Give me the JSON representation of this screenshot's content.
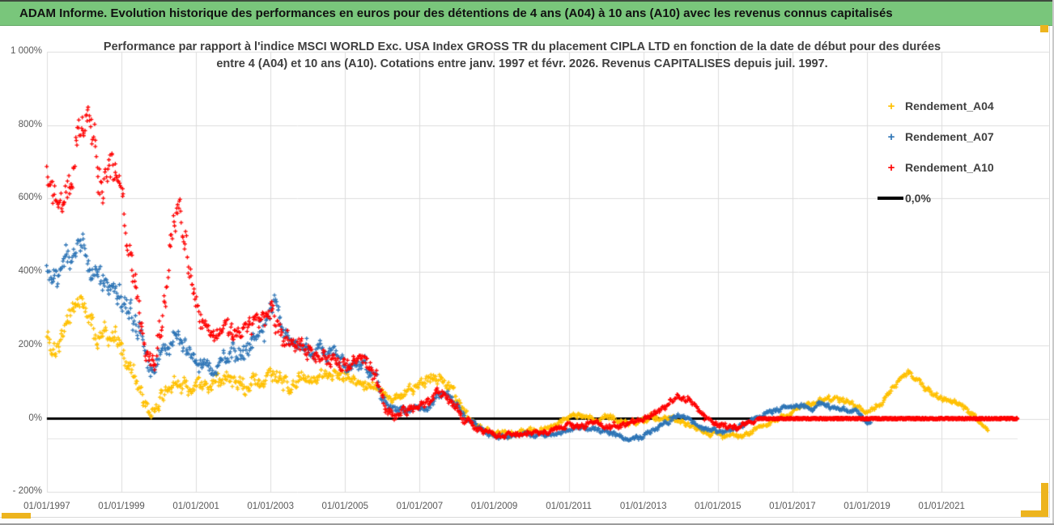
{
  "header": {
    "title": "ADAM Informe. Evolution historique des performances en euros pour des détentions de 4 ans (A04) à 10 ans (A10) avec les revenus connus capitalisés",
    "background_color": "#79C67B"
  },
  "accent_gold_color": "#EDB41E",
  "chart_data": {
    "type": "scatter",
    "title_line1": "Performance par rapport à l'indice MSCI WORLD Exc. USA Index GROSS TR  du placement CIPLA LTD en fonction de la date de début pour des durées",
    "title_line2": "entre 4 (A04) et 10 ans (A10). Cotations entre janv. 1997 et févr. 2026. Revenus CAPITALISES depuis juil. 1997.",
    "grid": true,
    "colors": {
      "grid": "#dcdcdc",
      "axis_text": "#595959",
      "zero_line": "#000000"
    },
    "y_axis": {
      "range": [
        -200,
        1000
      ],
      "ticks": [
        {
          "label": "1 000%",
          "value": 1000
        },
        {
          "label": "800%",
          "value": 800
        },
        {
          "label": "600%",
          "value": 600
        },
        {
          "label": "400%",
          "value": 400
        },
        {
          "label": "200%",
          "value": 200
        },
        {
          "label": "0%",
          "value": 0
        },
        {
          "label": "- 200%",
          "value": -200
        }
      ]
    },
    "x_axis": {
      "range_years": [
        1997.0,
        2023.9
      ],
      "ticks": [
        {
          "label": "01/01/1997",
          "year": 1997
        },
        {
          "label": "01/01/1999",
          "year": 1999
        },
        {
          "label": "01/01/2001",
          "year": 2001
        },
        {
          "label": "01/01/2003",
          "year": 2003
        },
        {
          "label": "01/01/2005",
          "year": 2005
        },
        {
          "label": "01/01/2007",
          "year": 2007
        },
        {
          "label": "01/01/2009",
          "year": 2009
        },
        {
          "label": "01/01/2011",
          "year": 2011
        },
        {
          "label": "01/01/2013",
          "year": 2013
        },
        {
          "label": "01/01/2015",
          "year": 2015
        },
        {
          "label": "01/01/2017",
          "year": 2017
        },
        {
          "label": "01/01/2019",
          "year": 2019
        },
        {
          "label": "01/01/2021",
          "year": 2021
        }
      ]
    },
    "legend": {
      "position": "right-top",
      "items": [
        {
          "label": "Rendement_A04",
          "marker": "+",
          "color": "#FFC000"
        },
        {
          "label": "Rendement_A07",
          "marker": "+",
          "color": "#2E75B6"
        },
        {
          "label": "Rendement_A10",
          "marker": "+",
          "color": "#FF0000"
        },
        {
          "label": "0,0%",
          "marker": "line",
          "color": "#000000"
        }
      ]
    },
    "zero_line": {
      "value": 0,
      "from_year": 1997.0,
      "to_year": 2023.04
    },
    "extra_faint_line": {
      "value": -55,
      "from_year": 1997.0,
      "to_year": 2023.04
    },
    "series": [
      {
        "name": "Rendement_A04",
        "color": "#FFC000",
        "marker": "+",
        "points_year_pct_band": [
          [
            1997.0,
            230,
            40
          ],
          [
            1997.3,
            200,
            42
          ],
          [
            1997.6,
            255,
            48
          ],
          [
            1997.85,
            320,
            40
          ],
          [
            1998.05,
            285,
            48
          ],
          [
            1998.35,
            225,
            50
          ],
          [
            1998.65,
            250,
            55
          ],
          [
            1998.95,
            205,
            50
          ],
          [
            1999.25,
            150,
            42
          ],
          [
            1999.55,
            60,
            35
          ],
          [
            1999.8,
            8,
            25
          ],
          [
            2000.05,
            55,
            30
          ],
          [
            2000.35,
            105,
            35
          ],
          [
            2000.65,
            90,
            32
          ],
          [
            2001.0,
            80,
            30
          ],
          [
            2001.35,
            92,
            35
          ],
          [
            2001.7,
            108,
            38
          ],
          [
            2002.05,
            98,
            35
          ],
          [
            2002.4,
            88,
            35
          ],
          [
            2002.75,
            100,
            38
          ],
          [
            2003.1,
            108,
            38
          ],
          [
            2003.45,
            88,
            30
          ],
          [
            2003.8,
            108,
            30
          ],
          [
            2004.15,
            118,
            28
          ],
          [
            2004.5,
            110,
            26
          ],
          [
            2004.85,
            122,
            28
          ],
          [
            2005.2,
            108,
            28
          ],
          [
            2005.55,
            98,
            28
          ],
          [
            2005.9,
            78,
            24
          ],
          [
            2006.2,
            58,
            20
          ],
          [
            2006.55,
            68,
            20
          ],
          [
            2006.9,
            78,
            22
          ],
          [
            2007.25,
            105,
            24
          ],
          [
            2007.55,
            115,
            24
          ],
          [
            2007.9,
            70,
            25
          ],
          [
            2008.2,
            15,
            20
          ],
          [
            2008.55,
            -18,
            15
          ],
          [
            2008.95,
            -38,
            12
          ],
          [
            2009.35,
            -44,
            12
          ],
          [
            2009.75,
            -35,
            12
          ],
          [
            2010.15,
            -34,
            10
          ],
          [
            2010.55,
            -24,
            10
          ],
          [
            2010.95,
            2,
            10
          ],
          [
            2011.3,
            10,
            10
          ],
          [
            2011.65,
            -4,
            10
          ],
          [
            2012.0,
            0,
            11
          ],
          [
            2012.4,
            -6,
            11
          ],
          [
            2012.8,
            -10,
            11
          ],
          [
            2013.2,
            4,
            11
          ],
          [
            2013.55,
            10,
            11
          ],
          [
            2013.95,
            -6,
            11
          ],
          [
            2014.3,
            -20,
            11
          ],
          [
            2014.65,
            -40,
            10
          ],
          [
            2015.05,
            -45,
            10
          ],
          [
            2015.45,
            -50,
            9
          ],
          [
            2015.85,
            -40,
            9
          ],
          [
            2016.2,
            -22,
            9
          ],
          [
            2016.55,
            -2,
            9
          ],
          [
            2016.9,
            12,
            9
          ],
          [
            2017.25,
            28,
            10
          ],
          [
            2017.65,
            45,
            11
          ],
          [
            2017.95,
            55,
            11
          ],
          [
            2018.3,
            55,
            11
          ],
          [
            2018.65,
            35,
            10
          ],
          [
            2019.0,
            20,
            10
          ],
          [
            2019.3,
            35,
            10
          ],
          [
            2019.6,
            70,
            13
          ],
          [
            2019.9,
            110,
            13
          ],
          [
            2020.1,
            125,
            10
          ],
          [
            2020.4,
            103,
            12
          ],
          [
            2020.7,
            75,
            12
          ],
          [
            2021.0,
            55,
            12
          ],
          [
            2021.3,
            45,
            10
          ],
          [
            2021.6,
            30,
            10
          ],
          [
            2021.9,
            6,
            9
          ],
          [
            2022.1,
            -24,
            7
          ],
          [
            2022.25,
            -30,
            5
          ]
        ]
      },
      {
        "name": "Rendement_A07",
        "color": "#2E75B6",
        "marker": "+",
        "points_year_pct_band": [
          [
            1997.0,
            420,
            50
          ],
          [
            1997.3,
            375,
            60
          ],
          [
            1997.6,
            420,
            60
          ],
          [
            1997.85,
            465,
            50
          ],
          [
            1998.05,
            440,
            60
          ],
          [
            1998.35,
            355,
            60
          ],
          [
            1998.65,
            380,
            65
          ],
          [
            1998.95,
            340,
            60
          ],
          [
            1999.25,
            280,
            60
          ],
          [
            1999.55,
            205,
            50
          ],
          [
            1999.85,
            130,
            35
          ],
          [
            2000.1,
            170,
            40
          ],
          [
            2000.4,
            215,
            40
          ],
          [
            2000.7,
            195,
            40
          ],
          [
            2001.0,
            160,
            35
          ],
          [
            2001.35,
            140,
            30
          ],
          [
            2001.7,
            160,
            35
          ],
          [
            2002.05,
            180,
            40
          ],
          [
            2002.4,
            205,
            45
          ],
          [
            2002.7,
            225,
            50
          ],
          [
            2002.95,
            280,
            55
          ],
          [
            2003.1,
            320,
            55
          ],
          [
            2003.3,
            250,
            50
          ],
          [
            2003.6,
            205,
            40
          ],
          [
            2004.0,
            190,
            35
          ],
          [
            2004.4,
            180,
            32
          ],
          [
            2004.8,
            170,
            30
          ],
          [
            2005.15,
            140,
            30
          ],
          [
            2005.5,
            150,
            30
          ],
          [
            2005.85,
            110,
            30
          ],
          [
            2006.1,
            35,
            20
          ],
          [
            2006.4,
            20,
            15
          ],
          [
            2006.75,
            25,
            15
          ],
          [
            2007.1,
            30,
            18
          ],
          [
            2007.4,
            60,
            22
          ],
          [
            2007.7,
            75,
            22
          ],
          [
            2008.0,
            35,
            20
          ],
          [
            2008.3,
            -5,
            15
          ],
          [
            2008.65,
            -27,
            12
          ],
          [
            2009.0,
            -40,
            12
          ],
          [
            2009.4,
            -45,
            11
          ],
          [
            2009.8,
            -40,
            11
          ],
          [
            2010.2,
            -45,
            10
          ],
          [
            2010.6,
            -40,
            10
          ],
          [
            2011.0,
            -25,
            10
          ],
          [
            2011.4,
            -25,
            10
          ],
          [
            2011.8,
            -30,
            10
          ],
          [
            2012.2,
            -45,
            11
          ],
          [
            2012.55,
            -58,
            10
          ],
          [
            2012.9,
            -52,
            10
          ],
          [
            2013.2,
            -33,
            10
          ],
          [
            2013.55,
            -10,
            10
          ],
          [
            2013.9,
            8,
            10
          ],
          [
            2014.2,
            4,
            10
          ],
          [
            2014.55,
            -24,
            10
          ],
          [
            2014.95,
            -35,
            10
          ],
          [
            2015.35,
            -30,
            10
          ],
          [
            2015.75,
            -15,
            10
          ],
          [
            2016.1,
            5,
            10
          ],
          [
            2016.5,
            20,
            10
          ],
          [
            2016.85,
            35,
            10
          ],
          [
            2017.2,
            40,
            10
          ],
          [
            2017.5,
            28,
            10
          ],
          [
            2017.8,
            40,
            10
          ],
          [
            2018.1,
            30,
            10
          ],
          [
            2018.45,
            24,
            10
          ],
          [
            2018.75,
            14,
            10
          ],
          [
            2019.0,
            -8,
            8
          ],
          [
            2019.1,
            -12,
            5
          ]
        ]
      },
      {
        "name": "Rendement_A10",
        "color": "#FF0000",
        "marker": "+",
        "points_year_pct_band": [
          [
            1997.0,
            650,
            70
          ],
          [
            1997.3,
            560,
            90
          ],
          [
            1997.6,
            620,
            90
          ],
          [
            1997.85,
            760,
            90
          ],
          [
            1998.05,
            800,
            70
          ],
          [
            1998.3,
            700,
            90
          ],
          [
            1998.55,
            650,
            90
          ],
          [
            1998.8,
            690,
            90
          ],
          [
            1999.0,
            620,
            60
          ],
          [
            1999.2,
            470,
            70
          ],
          [
            1999.45,
            290,
            60
          ],
          [
            1999.7,
            160,
            45
          ],
          [
            1999.9,
            125,
            35
          ],
          [
            2000.1,
            260,
            70
          ],
          [
            2000.35,
            500,
            80
          ],
          [
            2000.55,
            560,
            60
          ],
          [
            2000.75,
            450,
            70
          ],
          [
            2000.95,
            330,
            60
          ],
          [
            2001.2,
            250,
            45
          ],
          [
            2001.5,
            220,
            40
          ],
          [
            2001.8,
            235,
            40
          ],
          [
            2002.1,
            220,
            40
          ],
          [
            2002.45,
            245,
            45
          ],
          [
            2002.75,
            265,
            45
          ],
          [
            2003.05,
            270,
            50
          ],
          [
            2003.35,
            215,
            40
          ],
          [
            2003.7,
            190,
            35
          ],
          [
            2004.1,
            180,
            35
          ],
          [
            2004.5,
            165,
            30
          ],
          [
            2004.9,
            155,
            30
          ],
          [
            2005.2,
            145,
            30
          ],
          [
            2005.5,
            165,
            35
          ],
          [
            2005.8,
            120,
            35
          ],
          [
            2006.05,
            45,
            25
          ],
          [
            2006.3,
            20,
            18
          ],
          [
            2006.6,
            28,
            18
          ],
          [
            2006.95,
            30,
            18
          ],
          [
            2007.3,
            55,
            22
          ],
          [
            2007.6,
            70,
            22
          ],
          [
            2007.95,
            35,
            22
          ],
          [
            2008.25,
            -5,
            15
          ],
          [
            2008.6,
            -30,
            13
          ],
          [
            2009.0,
            -45,
            13
          ],
          [
            2009.4,
            -42,
            12
          ],
          [
            2009.8,
            -40,
            11
          ],
          [
            2010.2,
            -40,
            11
          ],
          [
            2010.6,
            -33,
            11
          ],
          [
            2011.0,
            -15,
            11
          ],
          [
            2011.35,
            -20,
            11
          ],
          [
            2011.7,
            -14,
            11
          ],
          [
            2012.1,
            -20,
            13
          ],
          [
            2012.5,
            -14,
            13
          ],
          [
            2012.9,
            -8,
            11
          ],
          [
            2013.25,
            8,
            12
          ],
          [
            2013.6,
            38,
            13
          ],
          [
            2013.95,
            62,
            13
          ],
          [
            2014.25,
            52,
            13
          ],
          [
            2014.55,
            12,
            13
          ],
          [
            2014.85,
            -14,
            11
          ],
          [
            2015.15,
            -20,
            10
          ],
          [
            2015.5,
            -26,
            10
          ],
          [
            2015.8,
            -14,
            9
          ],
          [
            2016.0,
            -4,
            6
          ]
        ],
        "flat_segment": {
          "from_year": 2016.05,
          "to_year": 2023.04,
          "value": 0
        }
      }
    ]
  }
}
